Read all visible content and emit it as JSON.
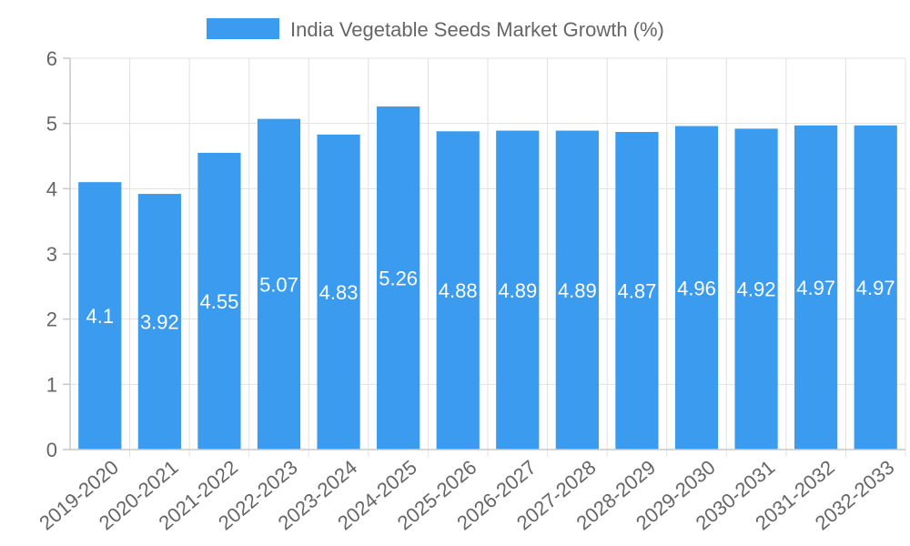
{
  "colors": {
    "bar": "#3a9bef",
    "grid": "#e1e1e1",
    "text": "#666666",
    "label": "#ffffff"
  },
  "chart_data": {
    "type": "bar",
    "legend": {
      "label": "India Vegetable Seeds Market Growth (%)",
      "position": "top"
    },
    "categories": [
      "2019-2020",
      "2020-2021",
      "2021-2022",
      "2022-2023",
      "2023-2024",
      "2024-2025",
      "2025-2026",
      "2026-2027",
      "2027-2028",
      "2028-2029",
      "2029-2030",
      "2030-2031",
      "2031-2032",
      "2032-2033"
    ],
    "series": [
      {
        "name": "India Vegetable Seeds Market Growth (%)",
        "values": [
          4.1,
          3.92,
          4.55,
          5.07,
          4.83,
          5.26,
          4.88,
          4.89,
          4.89,
          4.87,
          4.96,
          4.92,
          4.97,
          4.97
        ]
      }
    ],
    "data_labels": [
      "4.1",
      "3.92",
      "4.55",
      "5.07",
      "4.83",
      "5.26",
      "4.88",
      "4.89",
      "4.89",
      "4.87",
      "4.96",
      "4.92",
      "4.97",
      "4.97"
    ],
    "yticks": [
      "0",
      "1",
      "2",
      "3",
      "4",
      "5",
      "6"
    ],
    "ylim": [
      0,
      6
    ],
    "grid": true,
    "xlabel": "",
    "ylabel": ""
  }
}
